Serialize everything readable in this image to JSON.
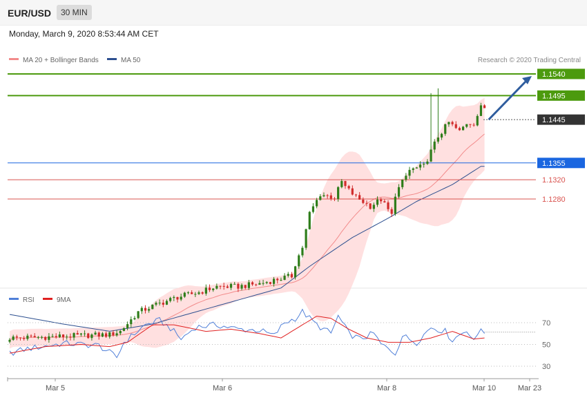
{
  "header": {
    "symbol": "EUR/USD",
    "timeframe": "30 MIN"
  },
  "date_text": "Monday, March 9, 2020 8:53:44 AM CET",
  "legend": [
    {
      "name": "MA 20 + Bollinger Bands",
      "color": "#f28b8b"
    },
    {
      "name": "MA 50",
      "color": "#2c4f8f"
    }
  ],
  "credit": "Research © 2020 Trading Central",
  "colors": {
    "up": "#2e7d1a",
    "down": "#d12b2b",
    "target": "#4c9a0e",
    "pivot": "#1a66e0",
    "support": "#d9534f",
    "arrow": "#2f5d9e",
    "band": "#ffd6d6"
  },
  "chart_data": [
    {
      "type": "candlestick",
      "y_range": [
        1.078,
        1.16
      ],
      "x_labels": [
        "Mar 5",
        "Mar 6",
        "Mar 8",
        "Mar 10",
        "Mar 23"
      ],
      "current_price": 1.1445,
      "levels": [
        {
          "value": 1.154,
          "label": "1.1540",
          "kind": "target"
        },
        {
          "value": 1.1495,
          "label": "1.1495",
          "kind": "target"
        },
        {
          "value": 1.1445,
          "label": "1.1445",
          "kind": "current"
        },
        {
          "value": 1.1355,
          "label": "1.1355",
          "kind": "pivot"
        },
        {
          "value": 1.132,
          "label": "1.1320",
          "kind": "support"
        },
        {
          "value": 1.128,
          "label": "1.1280",
          "kind": "support"
        }
      ],
      "close_anchors": [
        [
          0,
          1.0991
        ],
        [
          10,
          1.0993
        ],
        [
          20,
          1.0996
        ],
        [
          28,
          1.0998
        ],
        [
          31,
          1.1005
        ],
        [
          36,
          1.1045
        ],
        [
          41,
          1.106
        ],
        [
          47,
          1.1076
        ],
        [
          53,
          1.1086
        ],
        [
          58,
          1.1098
        ],
        [
          64,
          1.1098
        ],
        [
          70,
          1.1104
        ],
        [
          76,
          1.1115
        ],
        [
          79,
          1.112
        ],
        [
          80,
          1.1145
        ],
        [
          82,
          1.118
        ],
        [
          84,
          1.125
        ],
        [
          87,
          1.129
        ],
        [
          91,
          1.1283
        ],
        [
          93,
          1.1316
        ],
        [
          94,
          1.1305
        ],
        [
          97,
          1.1284
        ],
        [
          101,
          1.1265
        ],
        [
          104,
          1.1279
        ],
        [
          107,
          1.1246
        ],
        [
          108,
          1.129
        ],
        [
          112,
          1.134
        ],
        [
          116,
          1.1348
        ],
        [
          120,
          1.141
        ],
        [
          123,
          1.1439
        ],
        [
          126,
          1.142
        ],
        [
          128,
          1.1438
        ],
        [
          130,
          1.1438
        ],
        [
          132,
          1.147
        ]
      ],
      "spikes": [
        [
          118,
          1.15
        ],
        [
          120,
          1.151
        ],
        [
          132,
          1.148
        ]
      ],
      "ma50_anchors": [
        [
          0,
          1.104
        ],
        [
          15,
          1.102
        ],
        [
          28,
          1.1005
        ],
        [
          40,
          1.102
        ],
        [
          52,
          1.1045
        ],
        [
          64,
          1.107
        ],
        [
          76,
          1.1095
        ],
        [
          84,
          1.114
        ],
        [
          96,
          1.12
        ],
        [
          106,
          1.124
        ],
        [
          114,
          1.1275
        ],
        [
          124,
          1.131
        ],
        [
          132,
          1.1348
        ]
      ]
    },
    {
      "type": "line",
      "y_range": [
        20,
        80
      ],
      "y_ticks": [
        70,
        50,
        30
      ],
      "series": [
        {
          "name": "RSI",
          "color": "#4f7fd8",
          "anchors": [
            [
              0,
              42
            ],
            [
              5,
              46
            ],
            [
              15,
              51
            ],
            [
              25,
              49
            ],
            [
              30,
              38
            ],
            [
              32,
              52
            ],
            [
              38,
              68
            ],
            [
              42,
              72
            ],
            [
              45,
              65
            ],
            [
              48,
              55
            ],
            [
              52,
              66
            ],
            [
              58,
              68
            ],
            [
              64,
              64
            ],
            [
              70,
              63
            ],
            [
              74,
              58
            ],
            [
              77,
              70
            ],
            [
              80,
              74
            ],
            [
              82,
              80
            ],
            [
              86,
              68
            ],
            [
              90,
              60
            ],
            [
              92,
              76
            ],
            [
              95,
              60
            ],
            [
              98,
              55
            ],
            [
              102,
              60
            ],
            [
              104,
              50
            ],
            [
              108,
              42
            ],
            [
              110,
              58
            ],
            [
              114,
              52
            ],
            [
              118,
              66
            ],
            [
              122,
              62
            ],
            [
              124,
              54
            ],
            [
              128,
              64
            ],
            [
              130,
              52
            ],
            [
              132,
              66
            ],
            [
              133,
              62
            ]
          ]
        },
        {
          "name": "9MA",
          "color": "#e02020",
          "anchors": [
            [
              0,
              42
            ],
            [
              10,
              48
            ],
            [
              20,
              50
            ],
            [
              28,
              48
            ],
            [
              33,
              52
            ],
            [
              40,
              68
            ],
            [
              46,
              68
            ],
            [
              55,
              62
            ],
            [
              62,
              64
            ],
            [
              70,
              60
            ],
            [
              76,
              56
            ],
            [
              82,
              68
            ],
            [
              86,
              76
            ],
            [
              90,
              74
            ],
            [
              95,
              64
            ],
            [
              100,
              56
            ],
            [
              106,
              52
            ],
            [
              112,
              52
            ],
            [
              118,
              56
            ],
            [
              124,
              62
            ],
            [
              130,
              55
            ],
            [
              133,
              56
            ]
          ]
        }
      ]
    }
  ]
}
